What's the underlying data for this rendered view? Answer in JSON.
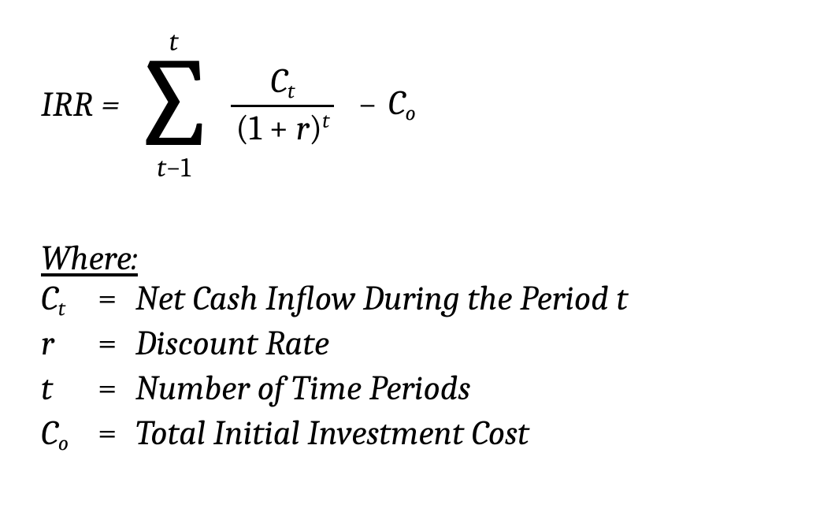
{
  "formula": {
    "lhs": "IRR",
    "eq": "=",
    "sigma": {
      "upper": "t",
      "lower_left": "t",
      "lower_mid": "−",
      "lower_right": "1"
    },
    "fraction": {
      "num_base": "C",
      "num_sub": "t",
      "den_open": "(",
      "den_one": "1",
      "den_plus": " + ",
      "den_r": "r",
      "den_close": ")",
      "den_sup": "t"
    },
    "minus": "−",
    "tail_base": "C",
    "tail_sub": "o"
  },
  "legend": {
    "where": "Where:",
    "rows": [
      {
        "sym_base": "C",
        "sym_sub": "t",
        "def": "Net Cash Inflow During the Period t"
      },
      {
        "sym_base": "r",
        "sym_sub": "",
        "def": "Discount Rate"
      },
      {
        "sym_base": "t",
        "sym_sub": "",
        "def": "Number of Time Periods"
      },
      {
        "sym_base": "C",
        "sym_sub": "o",
        "def": "Total Initial Investment Cost"
      }
    ],
    "eq": "="
  },
  "style": {
    "font_family": "Cambria / Times-like serif, italic",
    "text_color": "#000000",
    "background": "#ffffff",
    "base_fontsize_pt": 33,
    "sigma_fontsize_pt": 120
  }
}
